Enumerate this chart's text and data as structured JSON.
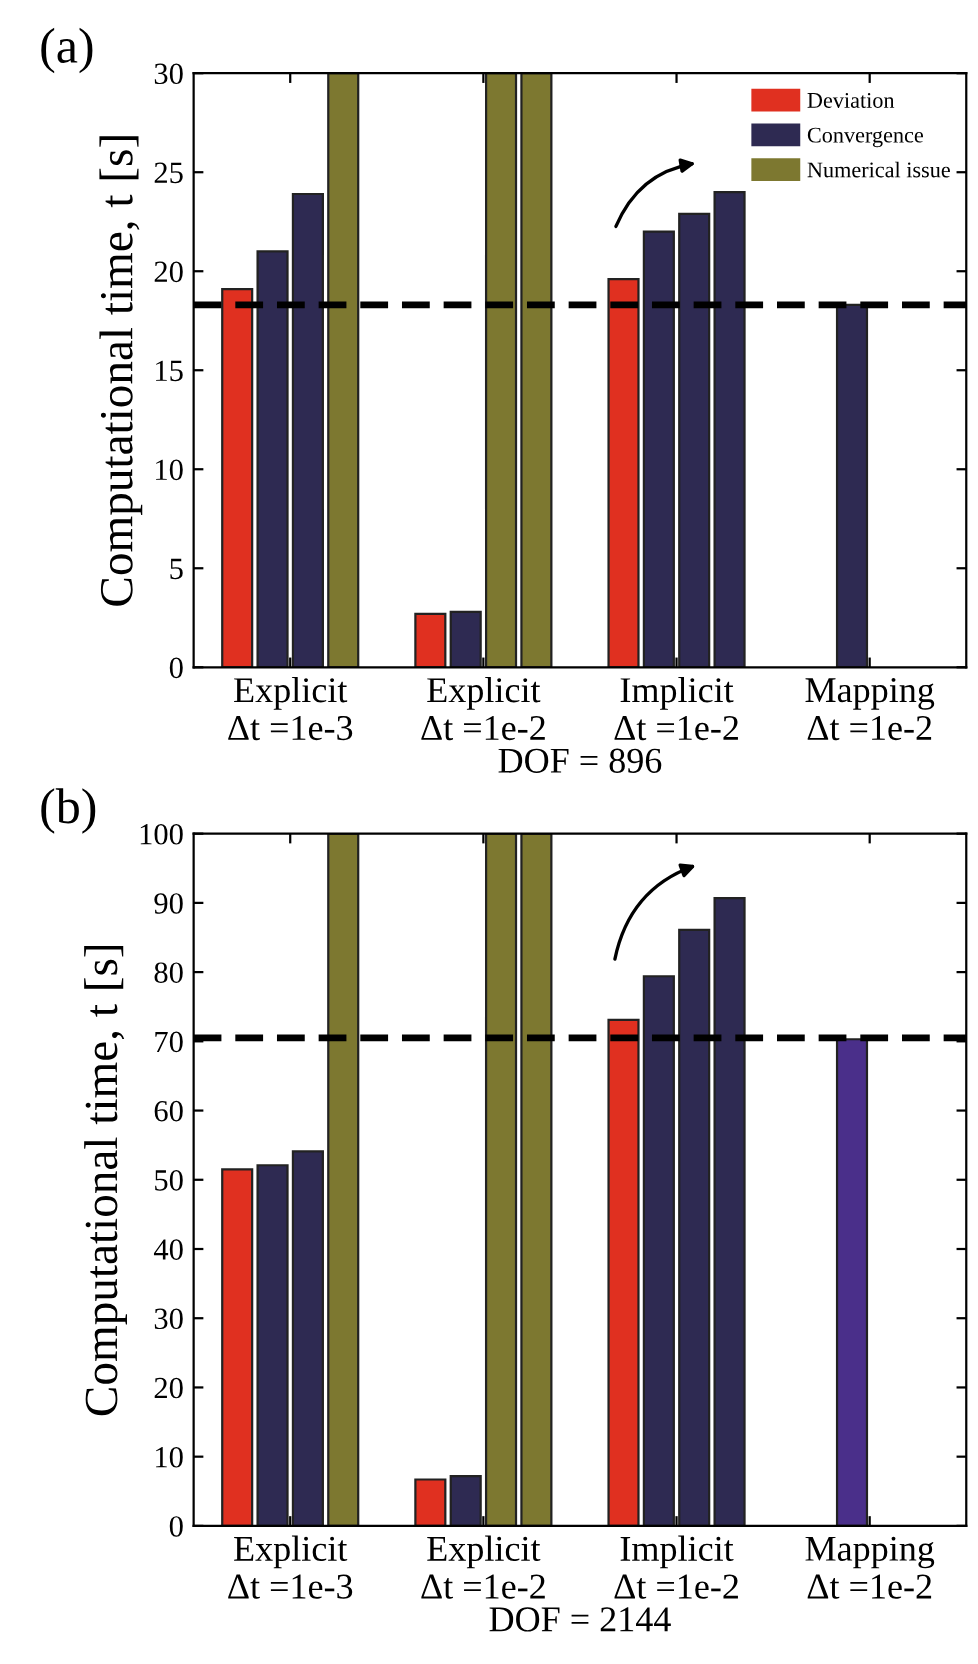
{
  "chart_data": [
    {
      "type": "bar",
      "title": "(a)",
      "xlabel": "DOF = 896",
      "ylabel": "Computational time, t [s]",
      "categories": [
        "Explicit\nΔt =1e-3",
        "Explicit\nΔt =1e-2",
        "Implicit\nΔt =1e-2",
        "Mapping\nΔt =1e-2"
      ],
      "series": [
        {
          "name": "Deviation",
          "color": "#e03020",
          "values": [
            19.1,
            2.7,
            19.6,
            null
          ]
        },
        {
          "name": "Convergence",
          "color": "#2e2a52",
          "values": [
            21.0,
            2.8,
            22.0,
            18.3
          ]
        },
        {
          "color": "#2e2a52",
          "values": [
            23.9,
            30,
            22.9,
            null
          ],
          "colors": [
            null,
            "#7d7830",
            null,
            null
          ]
        },
        {
          "name": "Numerical issue",
          "color": "#7d7830",
          "values": [
            30,
            30,
            24.0,
            null
          ],
          "colors": [
            null,
            null,
            "#2e2a52",
            null
          ]
        }
      ],
      "ylim": [
        0,
        30
      ],
      "yticks": [
        0,
        5,
        10,
        15,
        20,
        25,
        30
      ],
      "ref_lines": [
        {
          "axis": "y",
          "value": 18.3,
          "color": "#000000",
          "line_style": "dashed"
        }
      ],
      "legend": "top right",
      "grid": false
    },
    {
      "type": "bar",
      "title": "(b)",
      "xlabel": "DOF = 2144",
      "ylabel": "Computational time, t [s]",
      "categories": [
        "Explicit\nΔt =1e-3",
        "Explicit\nΔt =1e-2",
        "Implicit\nΔt =1e-2",
        "Mapping\nΔt =1e-2"
      ],
      "series": [
        {
          "color": "#e03020",
          "values": [
            51.5,
            6.7,
            73.1,
            null
          ]
        },
        {
          "color": "#2e2a52",
          "values": [
            52.1,
            7.2,
            79.4,
            70.3
          ],
          "colors": [
            null,
            null,
            null,
            "#4a2f8a"
          ]
        },
        {
          "color": "#2e2a52",
          "values": [
            54.1,
            100,
            86.1,
            null
          ],
          "colors": [
            null,
            "#7d7830",
            null,
            null
          ]
        },
        {
          "color": "#7d7830",
          "values": [
            100,
            100,
            90.7,
            null
          ],
          "colors": [
            null,
            null,
            "#2e2a52",
            null
          ]
        }
      ],
      "ylim": [
        0,
        100
      ],
      "yticks": [
        0,
        10,
        20,
        30,
        40,
        50,
        60,
        70,
        80,
        90,
        100
      ],
      "ref_lines": [
        {
          "axis": "y",
          "value": 70.5,
          "color": "#000000",
          "line_style": "dashed"
        }
      ],
      "legend": false,
      "grid": false
    }
  ]
}
